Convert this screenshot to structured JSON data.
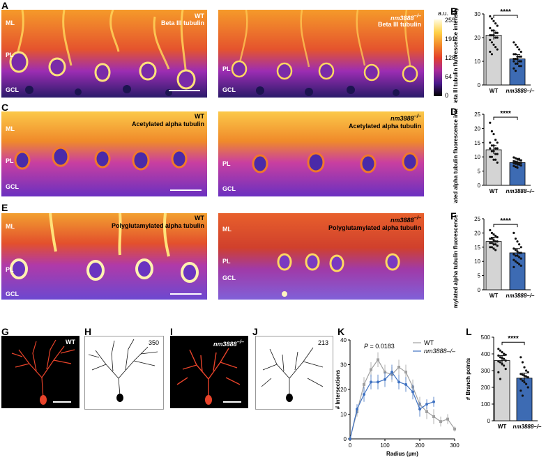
{
  "panels": {
    "A": {
      "letter": "A",
      "wt_label": "WT",
      "mut_label": "nm3888",
      "mut_sup": "–/–",
      "stain": "Beta III tubulin",
      "layers": [
        "ML",
        "PL",
        "GCL"
      ]
    },
    "C": {
      "letter": "C",
      "wt_label": "WT",
      "mut_label": "nm3888",
      "mut_sup": "–/–",
      "stain": "Acetylated alpha tubulin",
      "layers": [
        "ML",
        "PL",
        "GCL"
      ]
    },
    "E": {
      "letter": "E",
      "wt_label": "WT",
      "mut_label": "nm3888",
      "mut_sup": "–/–",
      "stain": "Polyglutamylated alpha tubulin",
      "layers": [
        "ML",
        "PL",
        "GCL"
      ]
    },
    "G": {
      "letter": "G",
      "label": "WT"
    },
    "H": {
      "letter": "H",
      "count": "350"
    },
    "I": {
      "letter": "I",
      "label": "nm3888",
      "sup": "–/–"
    },
    "J": {
      "letter": "J",
      "count": "213"
    }
  },
  "colorbar": {
    "unit": "a.u.",
    "ticks": [
      "255",
      "191",
      "128",
      "64",
      "0"
    ]
  },
  "colors": {
    "wt_bar": "#d4d4d4",
    "mut_bar": "#3d6bb3",
    "wt_line": "#a0a0a0",
    "mut_line": "#3f72c2",
    "neuron": "#e8432a"
  },
  "chart_data": [
    {
      "panel": "B",
      "type": "bar",
      "categories": [
        "WT",
        "nm3888–/–"
      ],
      "values": [
        21,
        11
      ],
      "ylabel": "Beta III tubulin fluorescence intensity (a.u.)",
      "ylim": [
        0,
        30
      ],
      "yticks": [
        "0",
        "10",
        "20",
        "30"
      ],
      "significance": "****",
      "points": [
        [
          29,
          28,
          27,
          26,
          25,
          24,
          23,
          23,
          22,
          22,
          21,
          21,
          21,
          20,
          20,
          19,
          18,
          17,
          16,
          15,
          14,
          13
        ],
        [
          18,
          17,
          16,
          15,
          14,
          13,
          13,
          12,
          12,
          12,
          11,
          11,
          11,
          10,
          10,
          10,
          9,
          9,
          8,
          8,
          7,
          6
        ]
      ]
    },
    {
      "panel": "D",
      "type": "bar",
      "categories": [
        "WT",
        "nm3888–/–"
      ],
      "values": [
        12.5,
        8
      ],
      "ylabel": "Acetylated alpha tubulin fluorescence intensity (a.u.)",
      "ylim": [
        0,
        25
      ],
      "yticks": [
        "0",
        "5",
        "10",
        "15",
        "20",
        "25"
      ],
      "significance": "****",
      "points": [
        [
          22,
          19,
          18,
          16,
          15,
          15,
          14,
          14,
          13,
          13,
          13,
          12,
          12,
          11,
          11,
          10,
          10,
          9,
          9,
          8
        ],
        [
          9.8,
          9.5,
          9.2,
          9,
          8.8,
          8.5,
          8.3,
          8.1,
          8,
          7.9,
          7.8,
          7.6,
          7.5,
          7.3,
          7,
          6.8,
          6.5,
          6.2
        ]
      ]
    },
    {
      "panel": "F",
      "type": "bar",
      "categories": [
        "WT",
        "nm3888–/–"
      ],
      "values": [
        17,
        13
      ],
      "ylabel": "Polyglutamylated alpha tubulin fluorescence intensity (a.u.)",
      "ylim": [
        0,
        25
      ],
      "yticks": [
        "0",
        "5",
        "10",
        "15",
        "20",
        "25"
      ],
      "significance": "****",
      "points": [
        [
          21,
          20,
          19.5,
          19,
          18.5,
          18,
          18,
          17.5,
          17,
          17,
          16.5,
          16.5,
          16,
          16,
          15.5,
          15,
          15,
          14.5,
          14
        ],
        [
          20,
          18,
          17,
          16,
          15,
          14.5,
          14,
          13.5,
          13,
          13,
          12.5,
          12,
          12,
          11.5,
          11,
          10.5,
          10,
          9.5,
          9,
          8.5,
          8
        ]
      ]
    },
    {
      "panel": "K",
      "type": "line",
      "xlabel": "Radius (µm)",
      "ylabel": "# Intersections",
      "xlim": [
        0,
        300
      ],
      "ylim": [
        0,
        40
      ],
      "xticks": [
        "0",
        "100",
        "200",
        "300"
      ],
      "yticks": [
        "0",
        "10",
        "20",
        "30",
        "40"
      ],
      "annotation_p": "P",
      "annotation_val": "= 0.0183",
      "series": [
        {
          "name": "WT",
          "x": [
            0,
            20,
            40,
            60,
            80,
            100,
            120,
            140,
            160,
            180,
            200,
            220,
            240,
            260,
            280,
            300
          ],
          "y": [
            0,
            11,
            22,
            28,
            32,
            27,
            26,
            29,
            27,
            21,
            14,
            11,
            9,
            7,
            8,
            4
          ],
          "err": [
            0,
            2,
            3,
            3,
            3,
            3,
            3,
            3,
            3,
            3,
            3,
            3,
            3,
            2,
            2,
            1
          ]
        },
        {
          "name": "nm3888–/–",
          "x": [
            0,
            20,
            40,
            60,
            80,
            100,
            120,
            140,
            160,
            180,
            200,
            220,
            240
          ],
          "y": [
            0,
            12,
            18,
            23,
            23,
            24,
            27,
            23,
            22,
            19,
            12,
            14,
            15
          ],
          "err": [
            0,
            2,
            3,
            3,
            3,
            3,
            3,
            3,
            3,
            3,
            3,
            2,
            2
          ]
        }
      ]
    },
    {
      "panel": "L",
      "type": "bar",
      "categories": [
        "WT",
        "nm3888–/–"
      ],
      "values": [
        360,
        255
      ],
      "ylabel": "# Branch points",
      "ylim": [
        0,
        500
      ],
      "yticks": [
        "0",
        "100",
        "200",
        "300",
        "400",
        "500"
      ],
      "significance": "****",
      "points": [
        [
          430,
          420,
          410,
          400,
          395,
          390,
          380,
          375,
          370,
          360,
          355,
          350,
          340,
          330,
          310,
          290,
          250
        ],
        [
          380,
          350,
          320,
          300,
          290,
          280,
          275,
          270,
          265,
          260,
          250,
          240,
          230,
          220,
          200,
          180,
          150
        ]
      ]
    }
  ]
}
